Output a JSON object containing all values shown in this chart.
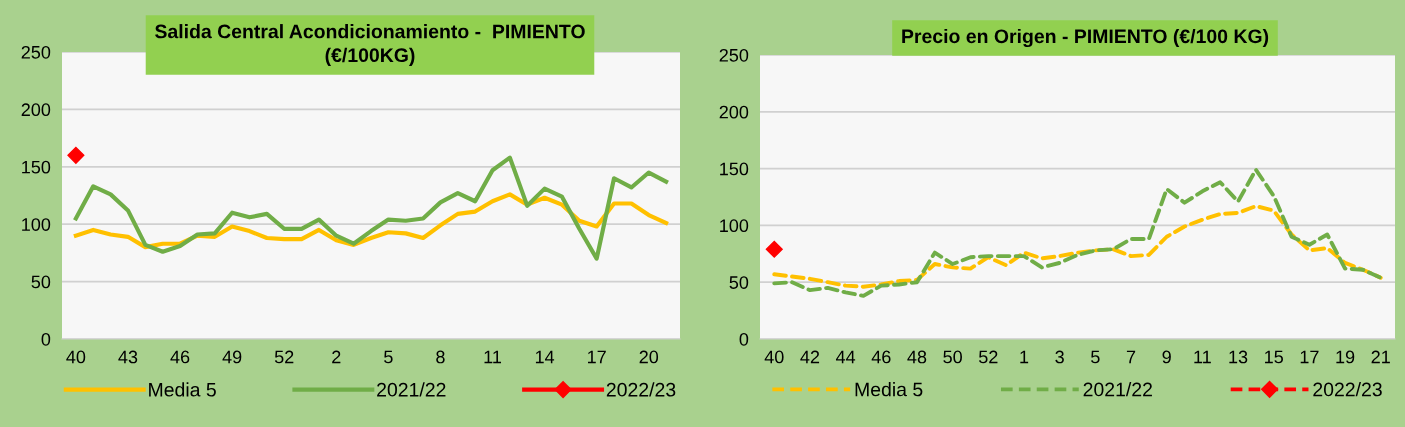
{
  "chart_data": [
    {
      "type": "line",
      "title": "Salida Central Acondicionamiento -  PIMIENTO\n(€/100KG)",
      "categories": [
        "40",
        null,
        null,
        "43",
        null,
        null,
        "46",
        null,
        null,
        "49",
        null,
        null,
        "52",
        null,
        null,
        "2",
        null,
        null,
        "5",
        null,
        null,
        "8",
        null,
        null,
        "11",
        null,
        null,
        "14",
        null,
        null,
        "17",
        null,
        null,
        "20",
        null
      ],
      "ylim": [
        0,
        250
      ],
      "yticks": [
        0,
        50,
        100,
        150,
        200,
        250
      ],
      "grid": "y",
      "legend": "bottom",
      "series": [
        {
          "name": "Media 5",
          "color": "#ffc000",
          "line_style": "solid",
          "marker": "none",
          "values": [
            90,
            95,
            91,
            89,
            80,
            83,
            83,
            90,
            89,
            98,
            94,
            88,
            87,
            87,
            95,
            86,
            82,
            88,
            93,
            92,
            88,
            99,
            109,
            111,
            120,
            126,
            117,
            123,
            117,
            103,
            98,
            118,
            118,
            108,
            101
          ]
        },
        {
          "name": "2021/22",
          "color": "#70ad47",
          "line_style": "solid",
          "marker": "none",
          "values": [
            105,
            133,
            126,
            112,
            82,
            76,
            81,
            91,
            92,
            110,
            106,
            109,
            96,
            96,
            104,
            90,
            83,
            94,
            104,
            103,
            105,
            119,
            127,
            120,
            147,
            158,
            116,
            131,
            124,
            96,
            70,
            140,
            132,
            145,
            137
          ]
        },
        {
          "name": "2022/23",
          "color": "#ff0000",
          "line_style": "solid",
          "marker": "diamond",
          "values": [
            160,
            null,
            null,
            null,
            null,
            null,
            null,
            null,
            null,
            null,
            null,
            null,
            null,
            null,
            null,
            null,
            null,
            null,
            null,
            null,
            null,
            null,
            null,
            null,
            null,
            null,
            null,
            null,
            null,
            null,
            null,
            null,
            null,
            null,
            null
          ]
        }
      ]
    },
    {
      "type": "line",
      "title": "Precio en Origen - PIMIENTO (€/100 KG)",
      "categories": [
        "40",
        null,
        "42",
        null,
        "44",
        null,
        "46",
        null,
        "48",
        null,
        "50",
        null,
        "52",
        null,
        "1",
        null,
        "3",
        null,
        "5",
        null,
        "7",
        null,
        "9",
        null,
        "11",
        null,
        "13",
        null,
        "15",
        null,
        "17",
        null,
        "19",
        null,
        "21"
      ],
      "ylim": [
        0,
        250
      ],
      "yticks": [
        0,
        50,
        100,
        150,
        200,
        250
      ],
      "grid": "y",
      "legend": "bottom",
      "series": [
        {
          "name": "Media 5",
          "color": "#ffc000",
          "line_style": "dashed",
          "marker": "none",
          "values": [
            57,
            55,
            53,
            50,
            47,
            46,
            48,
            51,
            52,
            66,
            63,
            62,
            72,
            65,
            76,
            71,
            73,
            76,
            78,
            79,
            73,
            74,
            90,
            99,
            105,
            110,
            111,
            117,
            113,
            92,
            78,
            80,
            67,
            61,
            54
          ]
        },
        {
          "name": "2021/22",
          "color": "#70ad47",
          "line_style": "dashed",
          "marker": "none",
          "values": [
            49,
            50,
            43,
            45,
            41,
            38,
            47,
            48,
            50,
            76,
            66,
            72,
            73,
            73,
            73,
            63,
            67,
            74,
            78,
            79,
            88,
            88,
            132,
            120,
            130,
            138,
            121,
            149,
            126,
            90,
            83,
            92,
            62,
            61,
            54
          ]
        },
        {
          "name": "2022/23",
          "color": "#ff0000",
          "line_style": "dashed",
          "marker": "diamond",
          "values": [
            79,
            null,
            null,
            null,
            null,
            null,
            null,
            null,
            null,
            null,
            null,
            null,
            null,
            null,
            null,
            null,
            null,
            null,
            null,
            null,
            null,
            null,
            null,
            null,
            null,
            null,
            null,
            null,
            null,
            null,
            null,
            null,
            null,
            null,
            null
          ]
        }
      ]
    }
  ]
}
